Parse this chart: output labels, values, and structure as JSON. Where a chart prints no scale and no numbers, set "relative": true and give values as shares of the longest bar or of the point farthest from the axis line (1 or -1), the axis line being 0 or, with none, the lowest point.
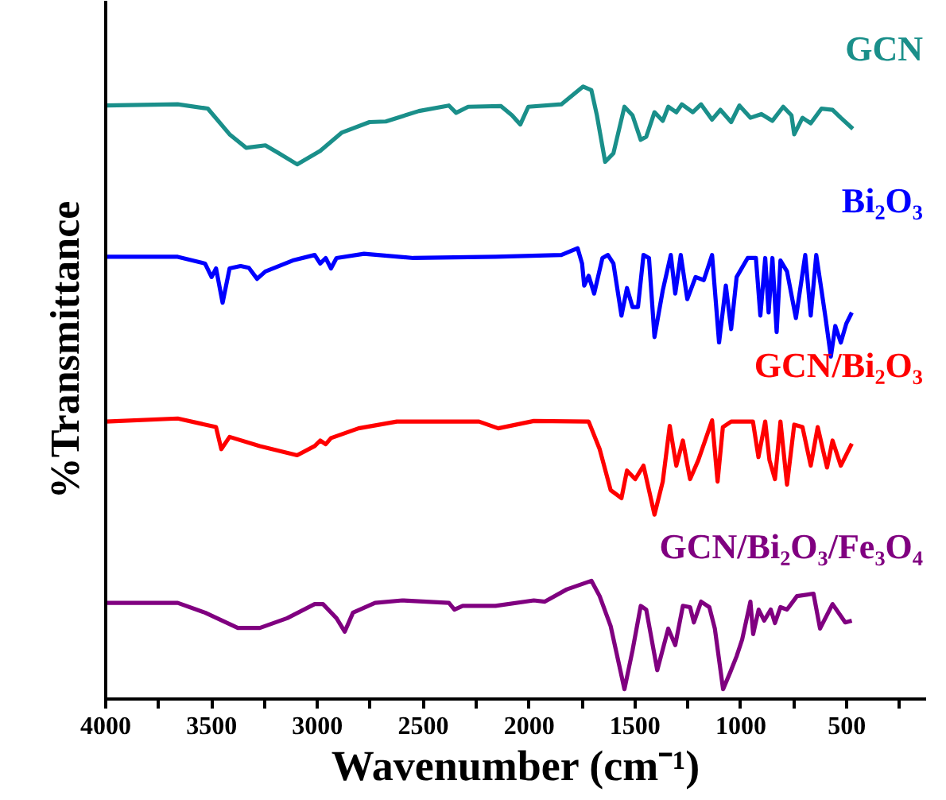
{
  "chart_data": {
    "type": "line",
    "relative": true,
    "xlabel": "Wavenumber (cm⁻¹)",
    "ylabel": "%Transmittance",
    "xlim": [
      4000,
      125
    ],
    "xticks": [
      4000,
      {
        "value": 3750,
        "label": null
      },
      3500,
      {
        "value": 3250,
        "label": null
      },
      3000,
      {
        "value": 2750,
        "label": null
      },
      2500,
      {
        "value": 2250,
        "label": null
      },
      2000,
      {
        "value": 1750,
        "label": null
      },
      1500,
      {
        "value": 1250,
        "label": null
      },
      1000,
      {
        "value": 750,
        "label": null
      },
      500,
      {
        "value": 250,
        "label": null
      }
    ],
    "grid": false,
    "tick_labels": "x",
    "line_style": "solid",
    "marker": "none",
    "series": [
      {
        "name": "GCN",
        "color": "#1a8f8a",
        "x": [
          4000,
          3660,
          3518,
          3415,
          3337,
          3246,
          3182,
          3096,
          2987,
          2884,
          2754,
          2677,
          2521,
          2379,
          2345,
          2288,
          2133,
          2081,
          2042,
          2004,
          1848,
          1745,
          1706,
          1680,
          1641,
          1602,
          1550,
          1512,
          1473,
          1447,
          1408,
          1369,
          1343,
          1305,
          1279,
          1227,
          1188,
          1136,
          1097,
          1046,
          1007,
          955,
          903,
          851,
          800,
          761,
          748,
          709,
          670,
          619,
          567,
          528,
          471
        ],
        "values": [
          0.969,
          0.971,
          0.964,
          0.922,
          0.9,
          0.904,
          0.891,
          0.873,
          0.895,
          0.925,
          0.942,
          0.943,
          0.96,
          0.969,
          0.957,
          0.967,
          0.968,
          0.953,
          0.938,
          0.967,
          0.971,
          1.0,
          0.994,
          0.953,
          0.877,
          0.891,
          0.967,
          0.953,
          0.913,
          0.918,
          0.958,
          0.944,
          0.967,
          0.958,
          0.971,
          0.958,
          0.971,
          0.946,
          0.962,
          0.942,
          0.969,
          0.949,
          0.955,
          0.944,
          0.967,
          0.953,
          0.922,
          0.949,
          0.94,
          0.964,
          0.962,
          0.949,
          0.931
        ]
      },
      {
        "name": "Bi₂O₃",
        "color": "#0000ff",
        "x": [
          4000,
          3660,
          3531,
          3500,
          3479,
          3448,
          3415,
          3363,
          3324,
          3285,
          3246,
          3117,
          3013,
          2987,
          2961,
          2936,
          2910,
          2780,
          2547,
          2159,
          1848,
          1771,
          1750,
          1740,
          1719,
          1693,
          1654,
          1628,
          1602,
          1564,
          1538,
          1512,
          1486,
          1460,
          1434,
          1408,
          1369,
          1331,
          1310,
          1284,
          1253,
          1214,
          1175,
          1136,
          1103,
          1071,
          1046,
          1020,
          968,
          929,
          908,
          885,
          869,
          851,
          831,
          813,
          782,
          740,
          696,
          670,
          644,
          619,
          600,
          575,
          554,
          528,
          502,
          476
        ],
        "values": [
          0.722,
          0.722,
          0.711,
          0.689,
          0.703,
          0.647,
          0.703,
          0.707,
          0.704,
          0.686,
          0.698,
          0.716,
          0.725,
          0.711,
          0.72,
          0.703,
          0.72,
          0.727,
          0.72,
          0.722,
          0.725,
          0.736,
          0.711,
          0.675,
          0.691,
          0.662,
          0.72,
          0.725,
          0.711,
          0.626,
          0.671,
          0.64,
          0.64,
          0.725,
          0.72,
          0.591,
          0.667,
          0.725,
          0.662,
          0.725,
          0.653,
          0.689,
          0.684,
          0.725,
          0.582,
          0.675,
          0.604,
          0.689,
          0.72,
          0.72,
          0.626,
          0.72,
          0.631,
          0.72,
          0.599,
          0.716,
          0.698,
          0.622,
          0.725,
          0.626,
          0.725,
          0.667,
          0.622,
          0.559,
          0.609,
          0.582,
          0.613,
          0.631
        ]
      },
      {
        "name": "GCN/Bi₂O₃",
        "color": "#ff0000",
        "x": [
          4000,
          3660,
          3479,
          3454,
          3415,
          3272,
          3096,
          3013,
          2987,
          2961,
          2936,
          2806,
          2625,
          2237,
          2146,
          1978,
          1719,
          1667,
          1615,
          1564,
          1538,
          1499,
          1460,
          1408,
          1369,
          1336,
          1305,
          1274,
          1240,
          1201,
          1136,
          1110,
          1085,
          1046,
          943,
          917,
          885,
          865,
          839,
          813,
          782,
          748,
          709,
          670,
          637,
          593,
          567,
          528,
          476
        ],
        "values": [
          0.453,
          0.458,
          0.444,
          0.408,
          0.428,
          0.413,
          0.398,
          0.413,
          0.422,
          0.416,
          0.426,
          0.442,
          0.453,
          0.453,
          0.442,
          0.454,
          0.453,
          0.408,
          0.341,
          0.328,
          0.373,
          0.359,
          0.381,
          0.301,
          0.355,
          0.446,
          0.381,
          0.422,
          0.359,
          0.39,
          0.455,
          0.355,
          0.444,
          0.453,
          0.453,
          0.395,
          0.453,
          0.39,
          0.359,
          0.453,
          0.35,
          0.448,
          0.444,
          0.381,
          0.444,
          0.378,
          0.422,
          0.381,
          0.417
        ]
      },
      {
        "name": "GCN/Bi₂O₃/Fe₃O₄",
        "color": "#800080",
        "x": [
          4000,
          3660,
          3531,
          3376,
          3272,
          3143,
          3013,
          2974,
          2910,
          2871,
          2832,
          2728,
          2599,
          2379,
          2353,
          2314,
          2159,
          1978,
          1926,
          1822,
          1706,
          1667,
          1615,
          1550,
          1512,
          1473,
          1447,
          1395,
          1343,
          1310,
          1274,
          1240,
          1222,
          1188,
          1149,
          1123,
          1084,
          1051,
          1020,
          994,
          955,
          942,
          916,
          890,
          859,
          839,
          813,
          782,
          735,
          657,
          626,
          567,
          507,
          476
        ],
        "values": [
          0.157,
          0.157,
          0.141,
          0.116,
          0.116,
          0.132,
          0.155,
          0.155,
          0.132,
          0.11,
          0.141,
          0.157,
          0.161,
          0.157,
          0.146,
          0.152,
          0.152,
          0.161,
          0.159,
          0.179,
          0.193,
          0.168,
          0.119,
          0.016,
          0.079,
          0.152,
          0.146,
          0.047,
          0.115,
          0.088,
          0.152,
          0.15,
          0.125,
          0.159,
          0.15,
          0.115,
          0.016,
          0.043,
          0.07,
          0.097,
          0.159,
          0.106,
          0.146,
          0.128,
          0.146,
          0.124,
          0.15,
          0.146,
          0.168,
          0.172,
          0.115,
          0.155,
          0.125,
          0.128
        ]
      }
    ]
  }
}
